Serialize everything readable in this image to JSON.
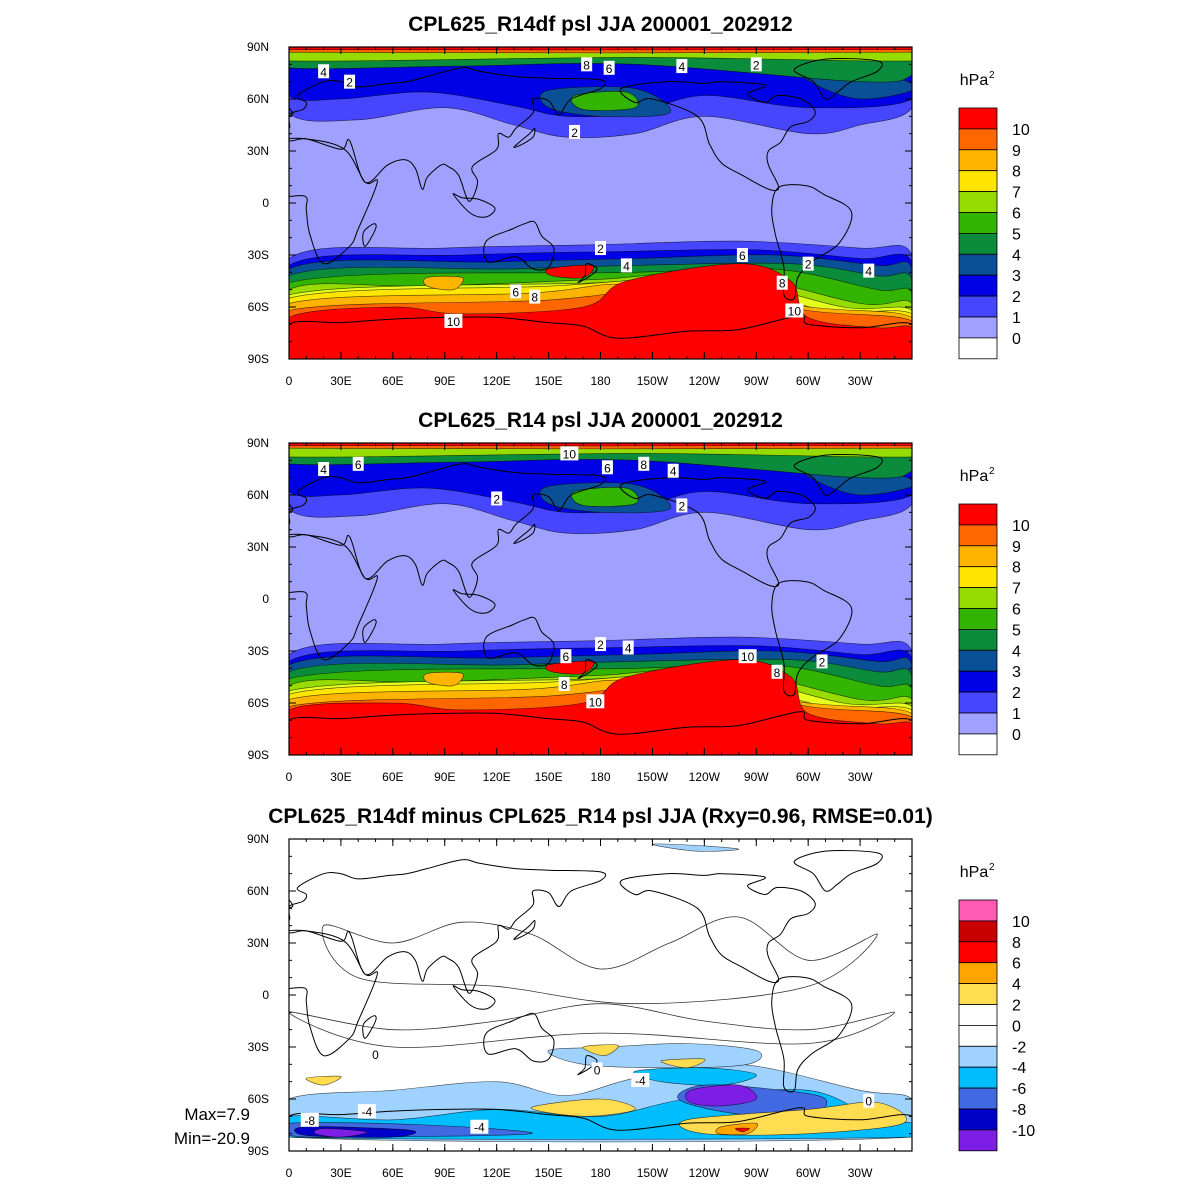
{
  "chart_data": [
    {
      "type": "heatmap",
      "title": "CPL625_R14df psl JJA 200001_202912",
      "units": "hPa²",
      "x_tick_labels": [
        "0",
        "30E",
        "60E",
        "90E",
        "120E",
        "150E",
        "180",
        "150W",
        "120W",
        "90W",
        "60W",
        "30W"
      ],
      "y_tick_labels": [
        "90N",
        "60N",
        "30N",
        "0",
        "30S",
        "60S",
        "90S"
      ],
      "colorbar_labels": [
        "10",
        "9",
        "8",
        "7",
        "6",
        "5",
        "4",
        "3",
        "2",
        "1",
        "0"
      ],
      "colorbar_colors": [
        "#ff0000",
        "#ff6600",
        "#ffb400",
        "#ffe600",
        "#e6ff1e",
        "#96dc00",
        "#32b400",
        "#0a8c3c",
        "#0a5096",
        "#0000e6",
        "#4646ff",
        "#a0a0ff",
        "#ffffff"
      ],
      "contour_labels": [
        {
          "text": "4",
          "lon": 20,
          "lat": 76
        },
        {
          "text": "2",
          "lon": 35,
          "lat": 70
        },
        {
          "text": "8",
          "lon": 172,
          "lat": 80
        },
        {
          "text": "6",
          "lon": 185,
          "lat": 78
        },
        {
          "text": "4",
          "lon": 227,
          "lat": 79
        },
        {
          "text": "2",
          "lon": 270,
          "lat": 80
        },
        {
          "text": "2",
          "lon": 165,
          "lat": 41
        },
        {
          "text": "2",
          "lon": 180,
          "lat": -26
        },
        {
          "text": "4",
          "lon": 195,
          "lat": -36
        },
        {
          "text": "6",
          "lon": 262,
          "lat": -30
        },
        {
          "text": "6",
          "lon": 131,
          "lat": -51
        },
        {
          "text": "8",
          "lon": 142,
          "lat": -54
        },
        {
          "text": "2",
          "lon": 300,
          "lat": -35
        },
        {
          "text": "4",
          "lon": 335,
          "lat": -39
        },
        {
          "text": "8",
          "lon": 285,
          "lat": -46
        },
        {
          "text": "10",
          "lon": 292,
          "lat": -62
        },
        {
          "text": "10",
          "lon": 95,
          "lat": -68
        }
      ]
    },
    {
      "type": "heatmap",
      "title": "CPL625_R14 psl JJA 200001_202912",
      "units": "hPa²",
      "x_tick_labels": [
        "0",
        "30E",
        "60E",
        "90E",
        "120E",
        "150E",
        "180",
        "150W",
        "120W",
        "90W",
        "60W",
        "30W"
      ],
      "y_tick_labels": [
        "90N",
        "60N",
        "30N",
        "0",
        "30S",
        "60S",
        "90S"
      ],
      "colorbar_labels": [
        "10",
        "9",
        "8",
        "7",
        "6",
        "5",
        "4",
        "3",
        "2",
        "1",
        "0"
      ],
      "colorbar_colors": [
        "#ff0000",
        "#ff6600",
        "#ffb400",
        "#ffe600",
        "#e6ff1e",
        "#96dc00",
        "#32b400",
        "#0a8c3c",
        "#0a5096",
        "#0000e6",
        "#4646ff",
        "#a0a0ff",
        "#ffffff"
      ],
      "contour_labels": [
        {
          "text": "4",
          "lon": 20,
          "lat": 75
        },
        {
          "text": "6",
          "lon": 40,
          "lat": 78
        },
        {
          "text": "10",
          "lon": 162,
          "lat": 84
        },
        {
          "text": "6",
          "lon": 184,
          "lat": 76
        },
        {
          "text": "8",
          "lon": 205,
          "lat": 78
        },
        {
          "text": "4",
          "lon": 222,
          "lat": 74
        },
        {
          "text": "2",
          "lon": 120,
          "lat": 58
        },
        {
          "text": "2",
          "lon": 227,
          "lat": 54
        },
        {
          "text": "2",
          "lon": 180,
          "lat": -26
        },
        {
          "text": "4",
          "lon": 196,
          "lat": -28
        },
        {
          "text": "6",
          "lon": 160,
          "lat": -33
        },
        {
          "text": "8",
          "lon": 159,
          "lat": -49
        },
        {
          "text": "10",
          "lon": 177,
          "lat": -59
        },
        {
          "text": "10",
          "lon": 265,
          "lat": -33
        },
        {
          "text": "8",
          "lon": 282,
          "lat": -42
        },
        {
          "text": "2",
          "lon": 308,
          "lat": -36
        }
      ]
    },
    {
      "type": "heatmap",
      "title": "CPL625_R14df minus CPL625_R14 psl JJA (Rxy=0.96, RMSE=0.01)",
      "units": "hPa²",
      "x_tick_labels": [
        "0",
        "30E",
        "60E",
        "90E",
        "120E",
        "150E",
        "180",
        "150W",
        "120W",
        "90W",
        "60W",
        "30W"
      ],
      "y_tick_labels": [
        "90N",
        "60N",
        "30N",
        "0",
        "30S",
        "60S",
        "90S"
      ],
      "colorbar_labels": [
        "10",
        "8",
        "6",
        "4",
        "2",
        "0",
        "-2",
        "-4",
        "-6",
        "-8",
        "-10"
      ],
      "colorbar_colors": [
        "#ff5ab4",
        "#c80000",
        "#ff0000",
        "#ffa500",
        "#ffdc50",
        "#ffffff",
        "#ffffff",
        "#a0d2ff",
        "#00beff",
        "#4169e1",
        "#0000c8",
        "#7d1ee6"
      ],
      "stats": {
        "max": "Max=7.9",
        "min": "Min=-20.9"
      },
      "contour_labels": [
        {
          "text": "0",
          "lon": 50,
          "lat": -34
        },
        {
          "text": "0",
          "lon": 178,
          "lat": -43
        },
        {
          "text": "-4",
          "lon": 203,
          "lat": -49
        },
        {
          "text": "0",
          "lon": 335,
          "lat": -61
        },
        {
          "text": "-4",
          "lon": 45,
          "lat": -67
        },
        {
          "text": "-4",
          "lon": 110,
          "lat": -76
        },
        {
          "text": "-8",
          "lon": 12,
          "lat": -72
        }
      ]
    }
  ]
}
